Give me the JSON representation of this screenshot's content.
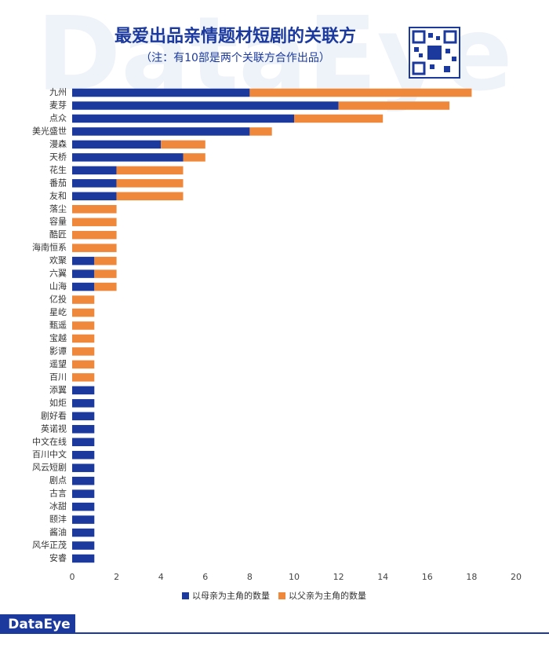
{
  "chart_data": {
    "type": "stacked_barh",
    "title": "最爱出品亲情题材短剧的关联方",
    "subtitle": "（注：有10部是两个关联方合作出品）",
    "watermark": "DataEye",
    "brand": "DataEye",
    "categories": [
      "九州",
      "麦芽",
      "点众",
      "美光盛世",
      "漫森",
      "天桥",
      "花生",
      "番茄",
      "友和",
      "落尘",
      "容量",
      "酷匠",
      "海南恒系",
      "欢聚",
      "六翼",
      "山海",
      "亿投",
      "星屹",
      "甄遥",
      "宝越",
      "影谭",
      "遥望",
      "百川",
      "添翼",
      "如炬",
      "剧好看",
      "英诺视",
      "中文在线",
      "百川中文",
      "风云短剧",
      "剧点",
      "古言",
      "冰甜",
      "颐沣",
      "酱油",
      "风华正茂",
      "安睿"
    ],
    "series": [
      {
        "name": "以母亲为主角的数量",
        "color": "#1c3a9e",
        "values": [
          8,
          12,
          10,
          8,
          4,
          5,
          2,
          2,
          2,
          0,
          0,
          0,
          0,
          1,
          1,
          1,
          0,
          0,
          0,
          0,
          0,
          0,
          0,
          1,
          1,
          1,
          1,
          1,
          1,
          1,
          1,
          1,
          1,
          1,
          1,
          1,
          1
        ]
      },
      {
        "name": "以父亲为主角的数量",
        "color": "#f0883c",
        "values": [
          10,
          5,
          4,
          1,
          2,
          1,
          3,
          3,
          3,
          2,
          2,
          2,
          2,
          1,
          1,
          1,
          1,
          1,
          1,
          1,
          1,
          1,
          1,
          0,
          0,
          0,
          0,
          0,
          0,
          0,
          0,
          0,
          0,
          0,
          0,
          0,
          0
        ]
      }
    ],
    "xlim": [
      0,
      20
    ],
    "xticks": [
      0,
      2,
      4,
      6,
      8,
      10,
      12,
      14,
      16,
      18,
      20
    ],
    "legend": "bottom"
  }
}
